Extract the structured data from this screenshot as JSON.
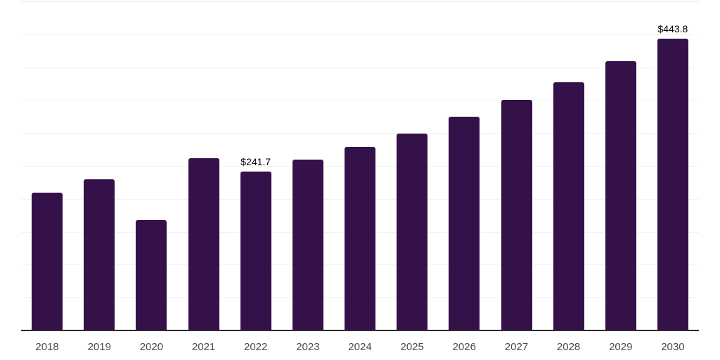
{
  "chart": {
    "colors": {
      "background": "#ffffff",
      "bar": "#341148",
      "axis": "#2b2b2b",
      "gridline": "#f3f3f3",
      "top_gridline": "#e9e9e9",
      "tick_label": "#4a4a4a",
      "value_label": "#000000"
    }
  },
  "chart_data": {
    "type": "bar",
    "title": "",
    "xlabel": "",
    "ylabel": "",
    "categories": [
      "2018",
      "2019",
      "2020",
      "2021",
      "2022",
      "2023",
      "2024",
      "2025",
      "2026",
      "2027",
      "2028",
      "2029",
      "2030"
    ],
    "values": [
      209.3,
      229.8,
      167.4,
      261.4,
      241.7,
      259.6,
      278.4,
      299.7,
      324.8,
      350.1,
      377.4,
      409.6,
      443.8
    ],
    "value_labels": [
      {
        "category": "2022",
        "index": 4,
        "text": "$241.7"
      },
      {
        "category": "2030",
        "index": 12,
        "text": "$443.8"
      }
    ],
    "ylim": [
      0,
      500
    ],
    "grid_step": 50,
    "grid": "horizontal",
    "legend": "none",
    "y_axis_tick_labels_visible": false
  }
}
